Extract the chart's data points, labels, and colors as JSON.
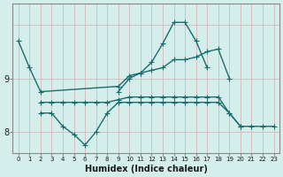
{
  "xlabel": "Humidex (Indice chaleur)",
  "bg_color": "#d4eeec",
  "line_color": "#1a6b6b",
  "grid_color": "#b8d8d5",
  "xlim": [
    -0.5,
    23.5
  ],
  "ylim": [
    7.6,
    10.4
  ],
  "yticks": [
    8,
    9
  ],
  "xticks": [
    0,
    1,
    2,
    3,
    4,
    5,
    6,
    7,
    8,
    9,
    10,
    11,
    12,
    13,
    14,
    15,
    16,
    17,
    18,
    19,
    20,
    21,
    22,
    23
  ],
  "red_hlines": [
    8.0,
    9.0
  ],
  "lines": [
    {
      "x": [
        0,
        1,
        2,
        9,
        10,
        11,
        12,
        13,
        14,
        15,
        16,
        17,
        18,
        19
      ],
      "y": [
        9.7,
        9.2,
        8.75,
        8.85,
        9.05,
        9.1,
        9.15,
        9.2,
        9.35,
        9.35,
        9.4,
        9.5,
        9.55,
        9.0
      ],
      "marker": "+",
      "markersize": 4,
      "linewidth": 1.0
    },
    {
      "x": [
        9,
        10,
        11,
        12,
        13,
        14,
        15,
        16,
        17
      ],
      "y": [
        8.75,
        9.0,
        9.1,
        9.3,
        9.65,
        10.05,
        10.05,
        9.7,
        9.2
      ],
      "marker": "+",
      "markersize": 4,
      "linewidth": 1.0
    },
    {
      "x": [
        2,
        3,
        4,
        5,
        6,
        7,
        8,
        9,
        10,
        11,
        12,
        13,
        14,
        15,
        16,
        17,
        18,
        19,
        20
      ],
      "y": [
        8.55,
        8.55,
        8.55,
        8.55,
        8.55,
        8.55,
        8.55,
        8.6,
        8.65,
        8.65,
        8.65,
        8.65,
        8.65,
        8.65,
        8.65,
        8.65,
        8.65,
        8.35,
        8.1
      ],
      "marker": "+",
      "markersize": 4,
      "linewidth": 1.0
    },
    {
      "x": [
        2,
        3,
        4,
        5,
        6,
        7,
        8,
        9,
        10,
        11,
        12,
        13,
        14,
        15,
        16,
        17,
        18,
        19,
        20,
        21,
        22,
        23
      ],
      "y": [
        8.35,
        8.35,
        8.1,
        7.95,
        7.75,
        8.0,
        8.35,
        8.55,
        8.55,
        8.55,
        8.55,
        8.55,
        8.55,
        8.55,
        8.55,
        8.55,
        8.55,
        8.35,
        8.1,
        8.1,
        8.1,
        8.1
      ],
      "marker": "+",
      "markersize": 4,
      "linewidth": 1.0
    }
  ]
}
